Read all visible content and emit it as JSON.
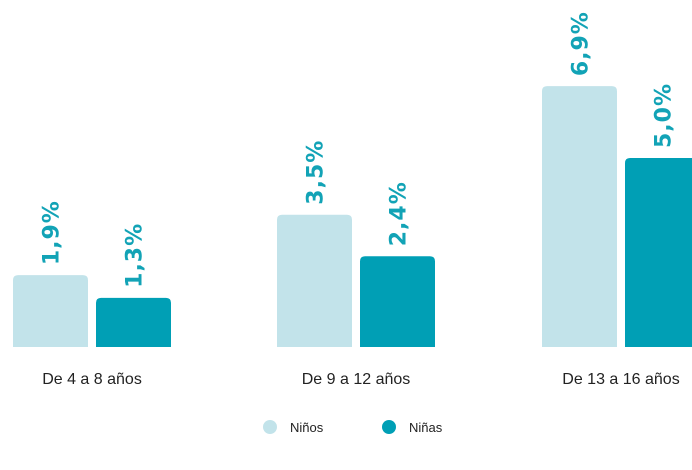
{
  "chart_data": {
    "type": "bar",
    "categories": [
      "De 4 a 8 años",
      "De 9 a 12 años",
      "De 13 a 16 años"
    ],
    "series": [
      {
        "name": "Niños",
        "color": "#c2e3ea",
        "values": [
          1.9,
          3.5,
          6.9
        ],
        "value_labels": [
          "1,9%",
          "3,5%",
          "6,9%"
        ]
      },
      {
        "name": "Niñas",
        "color": "#009fb5",
        "values": [
          1.3,
          2.4,
          5.0
        ],
        "value_labels": [
          "1,3%",
          "2,4%",
          "5,0%"
        ]
      }
    ]
  }
}
